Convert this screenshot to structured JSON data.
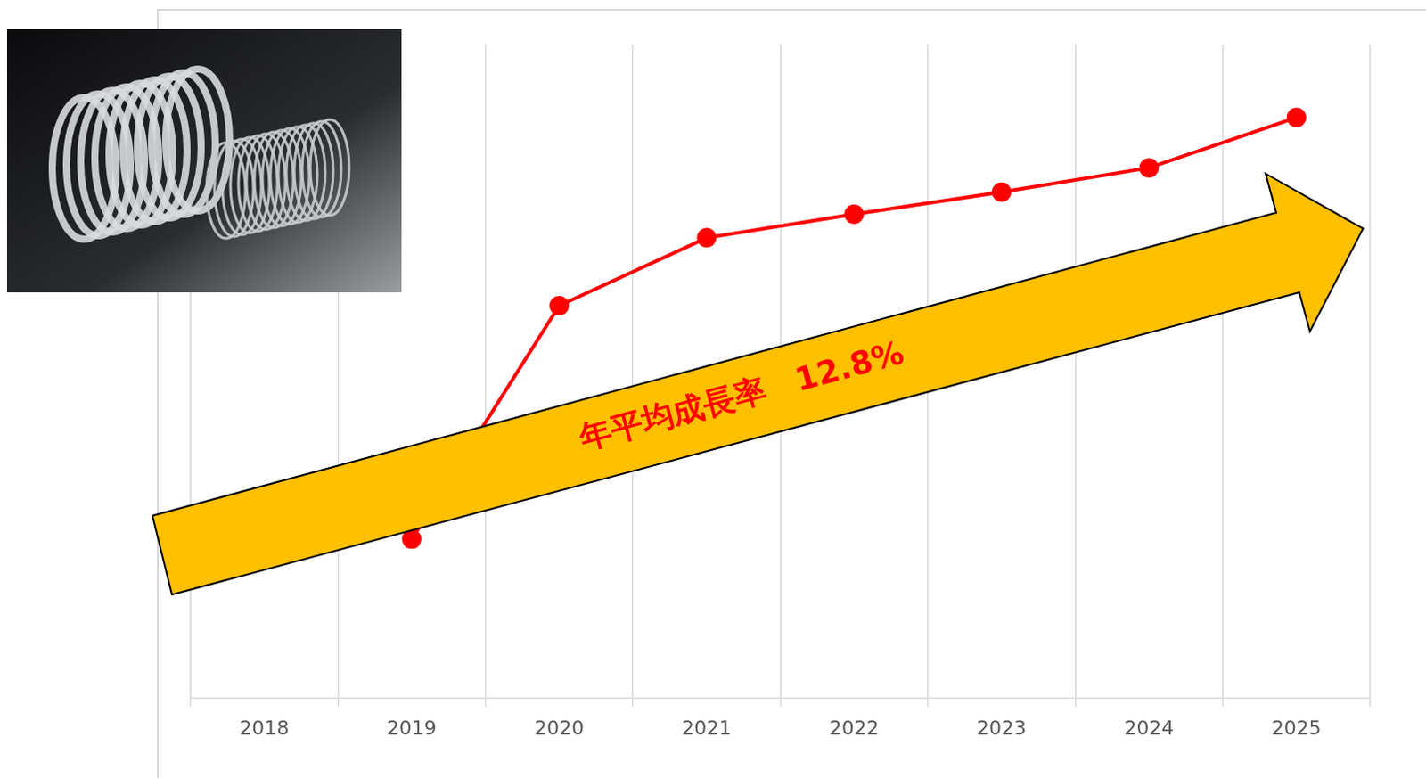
{
  "chart_data": {
    "type": "line",
    "categories": [
      "2018",
      "2019",
      "2020",
      "2021",
      "2022",
      "2023",
      "2024",
      "2025"
    ],
    "values": [
      null,
      24.3,
      60.0,
      70.4,
      74.0,
      77.4,
      81.1,
      88.8
    ],
    "color": "#ff0000",
    "marker": "circle",
    "ylim": [
      0,
      100
    ],
    "grid": "x",
    "tick_labels": "x",
    "annotations": [
      {
        "text": "年平均成長率　12.8%",
        "color": "#ff0000"
      }
    ]
  }
}
